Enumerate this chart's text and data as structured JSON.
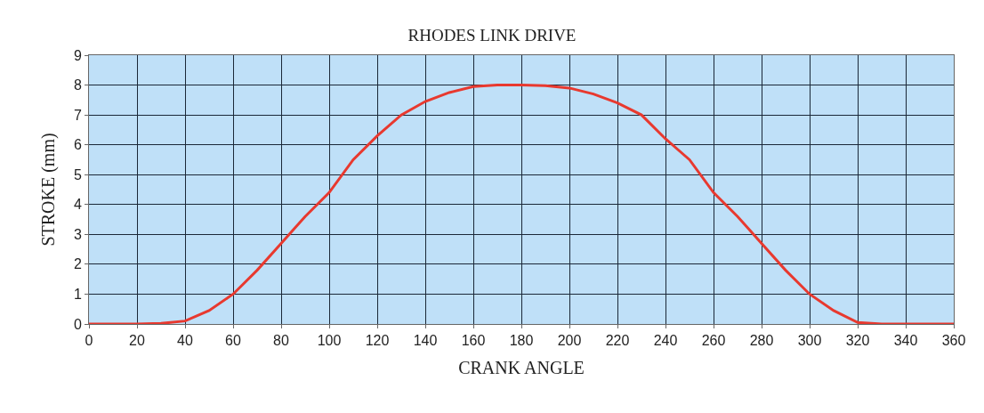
{
  "chart_data": {
    "type": "line",
    "title": "RHODES LINK DRIVE",
    "xlabel": "CRANK ANGLE",
    "ylabel": "STROKE (mm)",
    "x": [
      0,
      10,
      20,
      30,
      40,
      50,
      60,
      70,
      80,
      90,
      100,
      110,
      120,
      130,
      140,
      150,
      160,
      170,
      180,
      190,
      200,
      210,
      220,
      230,
      240,
      250,
      260,
      270,
      280,
      290,
      300,
      310,
      320,
      330,
      340,
      350,
      360
    ],
    "series": [
      {
        "color": "#e8392f",
        "values": [
          0,
          0,
          0,
          0.02,
          0.1,
          0.45,
          1.0,
          1.8,
          2.7,
          3.6,
          4.4,
          5.5,
          6.3,
          7.0,
          7.45,
          7.75,
          7.95,
          8.0,
          8.0,
          7.98,
          7.9,
          7.7,
          7.4,
          7.0,
          6.2,
          5.5,
          4.4,
          3.6,
          2.7,
          1.8,
          1.0,
          0.45,
          0.05,
          0,
          0,
          0,
          0
        ]
      }
    ],
    "xlim": [
      0,
      360
    ],
    "xticks": [
      0,
      20,
      40,
      60,
      80,
      100,
      120,
      140,
      160,
      180,
      200,
      220,
      240,
      260,
      280,
      300,
      320,
      340,
      360
    ],
    "ylim": [
      0,
      9
    ],
    "yticks": [
      0,
      1,
      2,
      3,
      4,
      5,
      6,
      7,
      8,
      9
    ],
    "grid": true,
    "marker": "none",
    "line_style": "solid"
  }
}
